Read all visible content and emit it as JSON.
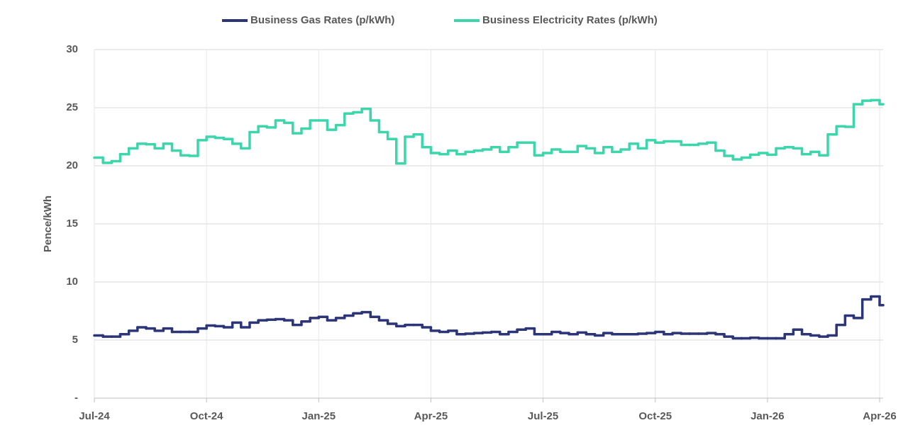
{
  "chart_data": {
    "type": "line",
    "line_style": "step",
    "y_label": "Pence/kWh",
    "grid": true,
    "legend": "top",
    "categories": [
      "Jul-24",
      null,
      null,
      null,
      null,
      null,
      null,
      null,
      null,
      null,
      null,
      null,
      null,
      "Oct-24",
      null,
      null,
      null,
      null,
      null,
      null,
      null,
      null,
      null,
      null,
      null,
      null,
      "Jan-25",
      null,
      null,
      null,
      null,
      null,
      null,
      null,
      null,
      null,
      null,
      null,
      null,
      "Apr-25",
      null,
      null,
      null,
      null,
      null,
      null,
      null,
      null,
      null,
      null,
      null,
      null,
      "Jul-25",
      null,
      null,
      null,
      null,
      null,
      null,
      null,
      null,
      null,
      null,
      null,
      null,
      "Oct-25",
      null,
      null,
      null,
      null,
      null,
      null,
      null,
      null,
      null,
      null,
      null,
      null,
      "Jan-26",
      null,
      null,
      null,
      null,
      null,
      null,
      null,
      null,
      null,
      null,
      null,
      null,
      "Apr-26"
    ],
    "series": [
      {
        "name": "Business Gas Rates (p/kWh)",
        "color": "#2b3578",
        "values": [
          5.4,
          5.3,
          5.3,
          5.5,
          5.8,
          6.1,
          6.0,
          5.8,
          6.0,
          5.7,
          5.7,
          5.7,
          6.0,
          6.25,
          6.2,
          6.1,
          6.5,
          6.1,
          6.5,
          6.7,
          6.75,
          6.8,
          6.7,
          6.3,
          6.6,
          6.9,
          7.0,
          6.7,
          6.9,
          7.1,
          7.3,
          7.4,
          7.0,
          6.7,
          6.4,
          6.2,
          6.3,
          6.3,
          6.1,
          5.8,
          5.7,
          5.8,
          5.5,
          5.55,
          5.6,
          5.65,
          5.7,
          5.5,
          5.7,
          5.9,
          6.0,
          5.5,
          5.5,
          5.7,
          5.6,
          5.5,
          5.65,
          5.5,
          5.4,
          5.6,
          5.5,
          5.5,
          5.5,
          5.55,
          5.6,
          5.7,
          5.5,
          5.6,
          5.55,
          5.55,
          5.55,
          5.6,
          5.5,
          5.3,
          5.15,
          5.15,
          5.2,
          5.15,
          5.15,
          5.15,
          5.5,
          5.9,
          5.5,
          5.4,
          5.3,
          5.4,
          6.3,
          7.1,
          6.9,
          8.5,
          8.75,
          8.0
        ]
      },
      {
        "name": "Business Electricity Rates (p/kWh)",
        "color": "#3dd6ac",
        "values": [
          20.7,
          20.25,
          20.4,
          21.0,
          21.5,
          21.9,
          21.85,
          21.5,
          21.9,
          21.3,
          20.9,
          20.85,
          22.2,
          22.5,
          22.4,
          22.3,
          21.9,
          21.5,
          22.9,
          23.4,
          23.3,
          23.9,
          23.7,
          22.8,
          23.2,
          23.9,
          23.9,
          23.1,
          23.5,
          24.5,
          24.6,
          24.9,
          23.9,
          22.9,
          22.3,
          20.2,
          22.5,
          22.7,
          21.6,
          21.1,
          21.0,
          21.3,
          21.0,
          21.2,
          21.3,
          21.4,
          21.6,
          21.2,
          21.6,
          22.0,
          22.0,
          20.9,
          21.1,
          21.4,
          21.2,
          21.2,
          21.7,
          21.5,
          21.1,
          21.6,
          21.2,
          21.4,
          21.9,
          21.5,
          22.2,
          22.0,
          22.1,
          22.1,
          21.8,
          21.8,
          21.9,
          22.0,
          21.3,
          20.85,
          20.55,
          20.7,
          20.95,
          21.1,
          20.95,
          21.5,
          21.6,
          21.5,
          21.0,
          21.2,
          20.9,
          22.7,
          23.4,
          23.35,
          25.3,
          25.6,
          25.65,
          25.3
        ]
      }
    ],
    "ylim": [
      0,
      30
    ],
    "yticks": [
      {
        "value": 0,
        "label": "-"
      },
      5,
      10,
      15,
      20,
      25,
      30
    ]
  }
}
